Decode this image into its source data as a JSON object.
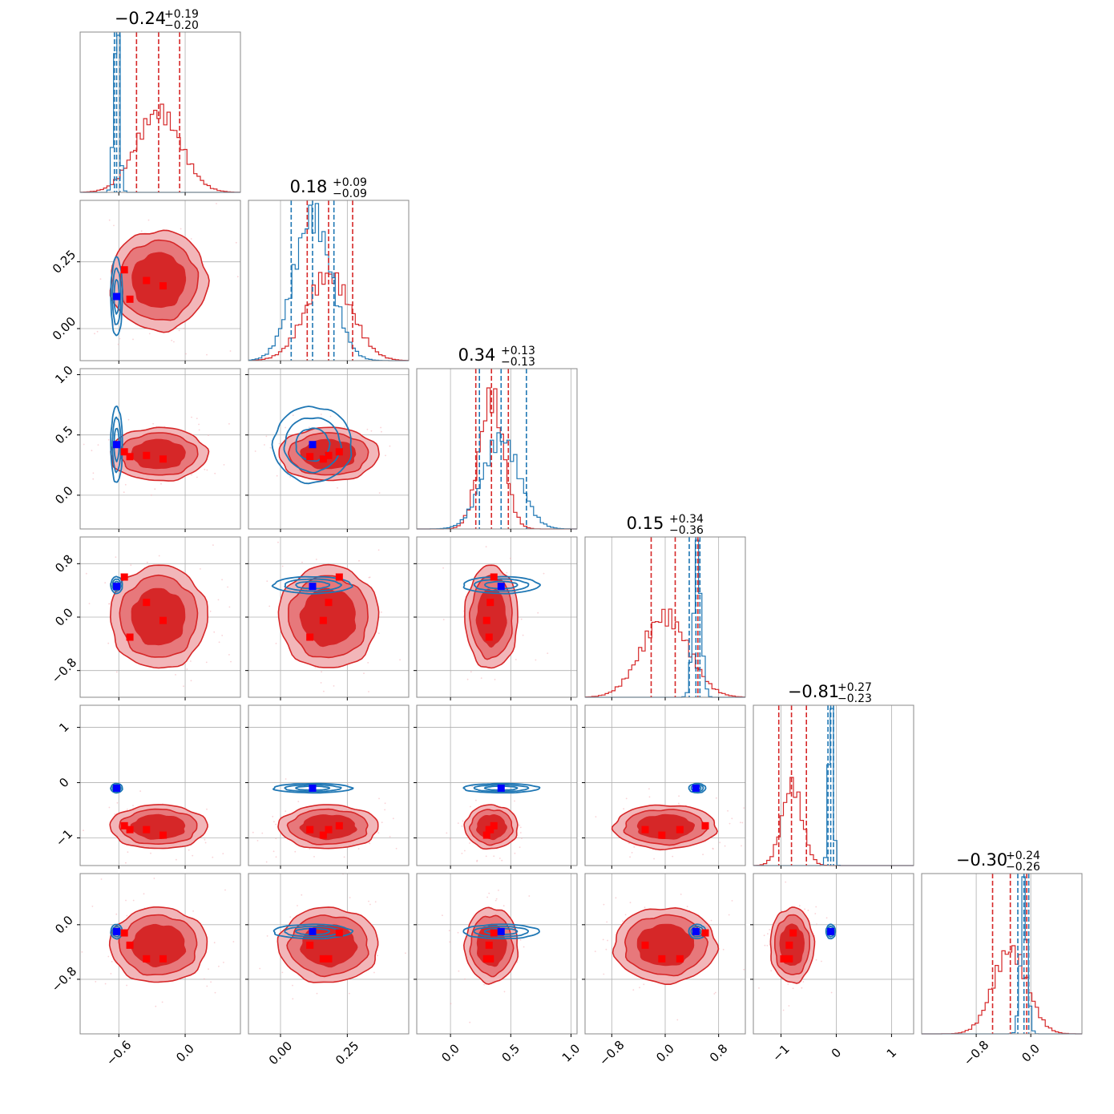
{
  "chart_data": {
    "type": "corner",
    "colors": {
      "red": "#d62728",
      "blue": "#1f77b4",
      "truth_blue": "#0000ff",
      "truth_red": "#ff0000",
      "grid": "#b0b0b0"
    },
    "series": [
      {
        "name": "",
        "color": "#d62728"
      },
      {
        "name": "",
        "color": "#1f77b4"
      }
    ],
    "params": [
      {
        "title_value": "−0.24",
        "title_plus": "+0.19",
        "title_minus": "−0.20",
        "range": [
          -0.95,
          0.5
        ],
        "grid": [
          -0.6,
          0.0
        ],
        "ticks": [
          "−0.6",
          "0.0"
        ],
        "red_mean": -0.24,
        "red_sigma": 0.2,
        "blue_mean": -0.62,
        "blue_sigma": 0.025,
        "red_quantiles": [
          -0.44,
          -0.24,
          -0.05
        ],
        "blue_quantiles": [
          -0.64,
          -0.62,
          -0.59
        ],
        "truths": [
          -0.55,
          -0.35,
          -0.2,
          -0.5
        ]
      },
      {
        "title_value": "0.18",
        "title_plus": "+0.09",
        "title_minus": "−0.09",
        "range": [
          -0.12,
          0.48
        ],
        "grid": [
          0.0,
          0.25
        ],
        "ticks": [
          "0.00",
          "0.25"
        ],
        "red_mean": 0.18,
        "red_sigma": 0.085,
        "blue_mean": 0.12,
        "blue_sigma": 0.07,
        "red_quantiles": [
          0.1,
          0.18,
          0.27
        ],
        "blue_quantiles": [
          0.04,
          0.12,
          0.2
        ],
        "truths": [
          0.22,
          0.18,
          0.16,
          0.11
        ]
      },
      {
        "title_value": "0.34",
        "title_plus": "+0.13",
        "title_minus": "−0.13",
        "range": [
          -0.28,
          1.05
        ],
        "grid": [
          0.0,
          0.5,
          1.0
        ],
        "ticks": [
          "0.0",
          "0.5",
          "1.0"
        ],
        "red_mean": 0.34,
        "red_sigma": 0.1,
        "blue_mean": 0.42,
        "blue_sigma": 0.15,
        "red_quantiles": [
          0.21,
          0.34,
          0.48
        ],
        "blue_quantiles": [
          0.24,
          0.42,
          0.63
        ],
        "truths": [
          0.36,
          0.33,
          0.3,
          0.32
        ]
      },
      {
        "title_value": "0.15",
        "title_plus": "+0.34",
        "title_minus": "−0.36",
        "range": [
          -1.2,
          1.2
        ],
        "grid": [
          -0.8,
          0.0,
          0.8
        ],
        "ticks": [
          "−0.8",
          "0.0",
          "0.8"
        ],
        "red_mean": 0.0,
        "red_sigma": 0.35,
        "blue_mean": 0.48,
        "blue_sigma": 0.06,
        "red_quantiles": [
          -0.21,
          0.15,
          0.49
        ],
        "blue_quantiles": [
          0.36,
          0.46,
          0.52
        ],
        "truths": [
          0.6,
          0.22,
          -0.05,
          -0.3
        ]
      },
      {
        "title_value": "−0.81",
        "title_plus": "+0.27",
        "title_minus": "−0.23",
        "range": [
          -1.5,
          1.4
        ],
        "grid": [
          -1.0,
          0.0,
          1.0
        ],
        "ticks": [
          "−1",
          "0",
          "1"
        ],
        "red_mean": -0.8,
        "red_sigma": 0.18,
        "blue_mean": -0.1,
        "blue_sigma": 0.04,
        "red_quantiles": [
          -1.04,
          -0.81,
          -0.54
        ],
        "blue_quantiles": [
          -0.15,
          -0.1,
          -0.05
        ],
        "truths": [
          -0.78,
          -0.85,
          -0.95,
          -0.85
        ]
      },
      {
        "title_value": "−0.30",
        "title_plus": "+0.24",
        "title_minus": "−0.26",
        "range": [
          -1.6,
          0.75
        ],
        "grid": [
          -0.8,
          0.0
        ],
        "ticks": [
          "−0.8",
          "0.0"
        ],
        "red_mean": -0.3,
        "red_sigma": 0.25,
        "blue_mean": -0.1,
        "blue_sigma": 0.05,
        "red_quantiles": [
          -0.56,
          -0.3,
          -0.06
        ],
        "blue_quantiles": [
          -0.19,
          -0.1,
          -0.03
        ],
        "truths": [
          -0.12,
          -0.5,
          -0.5,
          -0.3
        ]
      }
    ],
    "blue_truth": [
      -0.62,
      0.12,
      0.42,
      0.46,
      -0.1,
      -0.1
    ]
  }
}
